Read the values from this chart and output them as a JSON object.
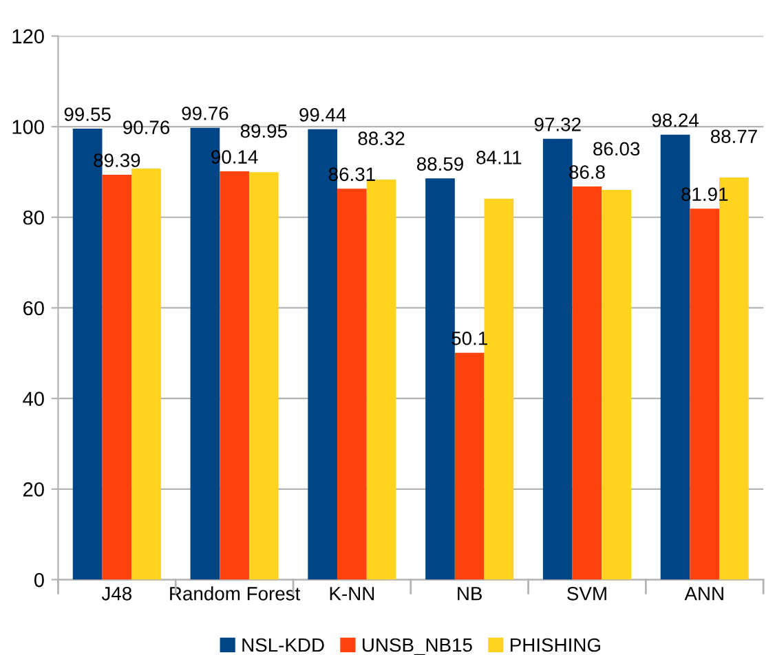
{
  "chart_data": {
    "type": "bar",
    "categories": [
      "J48",
      "Random Forest",
      "K-NN",
      "NB",
      "SVM",
      "ANN"
    ],
    "series": [
      {
        "name": "NSL-KDD",
        "color": "#004586",
        "values": [
          99.55,
          99.76,
          99.44,
          88.59,
          97.32,
          98.24
        ]
      },
      {
        "name": "UNSB_NB15",
        "color": "#ff420e",
        "values": [
          89.39,
          90.14,
          86.31,
          50.1,
          86.8,
          81.91
        ]
      },
      {
        "name": "PHISHING",
        "color": "#ffd320",
        "values": [
          90.76,
          89.95,
          88.32,
          84.11,
          86.03,
          88.77
        ]
      }
    ],
    "ylim": [
      0,
      120
    ],
    "yticks": [
      0,
      20,
      40,
      60,
      80,
      100,
      120
    ],
    "grid": "y",
    "legend": "bottom",
    "data_labels": true
  }
}
